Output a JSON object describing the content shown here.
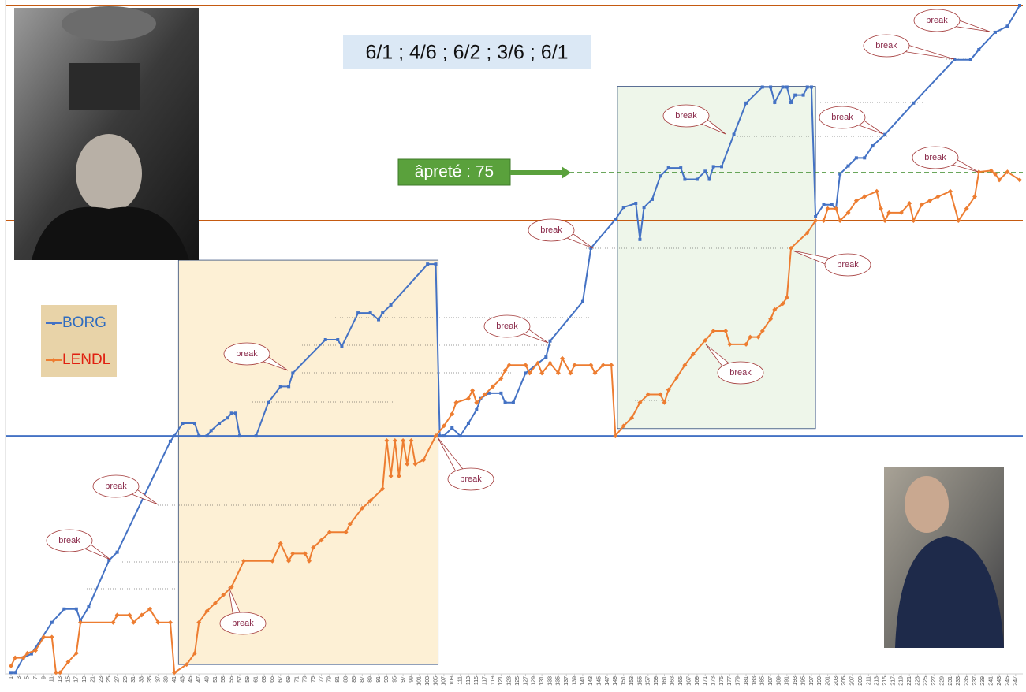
{
  "chart_data": {
    "type": "line",
    "title": "6/1 ; 4/6 ; 6/2 ; 3/6 ; 6/1",
    "xlim": [
      1,
      248
    ],
    "xticks": [
      1,
      3,
      5,
      7,
      9,
      11,
      13,
      15,
      17,
      19,
      21,
      23,
      25,
      27,
      29,
      31,
      33,
      35,
      37,
      39,
      41,
      43,
      45,
      47,
      49,
      51,
      53,
      55,
      57,
      59,
      61,
      63,
      65,
      67,
      69,
      71,
      73,
      75,
      77,
      79,
      81,
      83,
      85,
      87,
      89,
      91,
      93,
      95,
      97,
      99,
      101,
      103,
      105,
      107,
      109,
      111,
      113,
      115,
      117,
      119,
      121,
      123,
      125,
      127,
      129,
      131,
      133,
      135,
      137,
      139,
      141,
      143,
      145,
      147,
      149,
      151,
      153,
      155,
      157,
      159,
      161,
      163,
      165,
      167,
      169,
      171,
      173,
      175,
      177,
      179,
      181,
      183,
      185,
      187,
      189,
      191,
      193,
      195,
      197,
      199,
      201,
      203,
      205,
      207,
      209,
      211,
      213,
      215,
      217,
      219,
      221,
      223,
      225,
      227,
      229,
      231,
      233,
      235,
      237,
      239,
      241,
      243,
      245,
      247
    ],
    "ylim": [
      0,
      100
    ],
    "series": [
      {
        "name": "BORG",
        "color": "#4472c4",
        "marker": "square",
        "x": [
          1,
          2,
          4,
          6,
          11,
          14,
          17,
          18,
          20,
          25,
          27,
          40,
          41,
          43,
          46,
          47,
          49,
          50,
          52,
          54,
          55,
          56,
          57,
          61,
          64,
          67,
          69,
          70,
          78,
          81,
          82,
          86,
          89,
          91,
          92,
          94,
          103,
          105,
          106,
          107,
          109,
          111,
          113,
          115,
          116,
          118,
          121,
          122,
          124,
          127,
          132,
          133,
          141,
          143,
          149,
          151,
          154,
          155,
          156,
          158,
          160,
          162,
          165,
          166,
          169,
          171,
          172,
          173,
          175,
          178,
          181,
          185,
          187,
          188,
          190,
          191,
          192,
          193,
          195,
          196,
          197,
          198,
          200,
          202,
          203,
          204,
          206,
          208,
          210,
          212,
          215,
          222,
          232,
          236,
          238,
          242,
          245,
          248
        ],
        "values": [
          0.2,
          0.2,
          2.4,
          3,
          7.7,
          9.7,
          9.7,
          8,
          10,
          17,
          18.2,
          34.8,
          35.6,
          37.5,
          37.5,
          35.6,
          35.6,
          36.4,
          37.5,
          38.3,
          39,
          39,
          35.6,
          35.6,
          40.6,
          43,
          43,
          45,
          50,
          50,
          49,
          54,
          54,
          53,
          54,
          55.2,
          61.3,
          61.3,
          35.6,
          35.6,
          36.8,
          35.6,
          37.5,
          39.5,
          41.2,
          42,
          42,
          40.6,
          40.6,
          45,
          47.4,
          49.8,
          55.7,
          63.7,
          68,
          69.8,
          70.4,
          65,
          69.8,
          71,
          74.5,
          75.7,
          75.7,
          74,
          74,
          75.2,
          74,
          75.9,
          75.9,
          80.7,
          85.4,
          87.8,
          87.8,
          85.5,
          87.8,
          87.8,
          85.5,
          86.6,
          86.6,
          87.8,
          87.8,
          68.4,
          70.2,
          70.2,
          69.6,
          74.8,
          76,
          77.2,
          77.2,
          79,
          80.7,
          85.4,
          91.9,
          91.9,
          93.4,
          96,
          96.9,
          100
        ]
      },
      {
        "name": "LENDL",
        "color": "#ed7d31",
        "marker": "diamond",
        "x": [
          1,
          2,
          4,
          5,
          7,
          9,
          11,
          12,
          13,
          15,
          17,
          18,
          26,
          27,
          30,
          31,
          33,
          35,
          37,
          40,
          41,
          44,
          46,
          47,
          49,
          51,
          53,
          55,
          58,
          65,
          67,
          69,
          70,
          73,
          74,
          75,
          77,
          79,
          83,
          84,
          87,
          89,
          92,
          93,
          94,
          95,
          96,
          97,
          98,
          99,
          100,
          102,
          105,
          107,
          109,
          110,
          113,
          114,
          115,
          117,
          119,
          121,
          122,
          123,
          127,
          128,
          130,
          131,
          133,
          135,
          136,
          138,
          139,
          143,
          144,
          146,
          148,
          149,
          151,
          153,
          155,
          157,
          160,
          161,
          162,
          164,
          166,
          168,
          171,
          173,
          176,
          177,
          181,
          182,
          184,
          185,
          187,
          188,
          190,
          191,
          192,
          196,
          198,
          200,
          201,
          203,
          204,
          206,
          208,
          210,
          213,
          214,
          215,
          216,
          219,
          221,
          222,
          224,
          226,
          228,
          231,
          233,
          235,
          237,
          238,
          241,
          242,
          243,
          245,
          248
        ],
        "values": [
          1.2,
          2.4,
          2.4,
          3.1,
          3.5,
          5.5,
          5.5,
          0.2,
          0.2,
          1.8,
          3.1,
          7.7,
          7.7,
          8.8,
          8.8,
          7.7,
          8.8,
          9.7,
          7.7,
          7.7,
          0.2,
          1.4,
          3.1,
          7.7,
          9.4,
          10.6,
          11.8,
          13,
          16.9,
          16.9,
          19.5,
          16.9,
          18,
          18,
          16.9,
          18.9,
          20,
          21.2,
          21.2,
          22.4,
          24.8,
          25.9,
          27.7,
          34.9,
          29.6,
          34.9,
          29.6,
          34.9,
          31.4,
          34.9,
          31.4,
          32,
          35.6,
          37.1,
          38.9,
          40.6,
          41.2,
          42.4,
          40.6,
          41.8,
          43,
          44.2,
          45.4,
          46.2,
          46.2,
          45,
          46.5,
          45,
          46.5,
          45,
          47.2,
          45,
          46.2,
          46.2,
          45,
          46.2,
          46.2,
          35.6,
          37.1,
          38.3,
          40.6,
          41.8,
          41.8,
          40.6,
          42.5,
          44.3,
          46.2,
          47.8,
          49.9,
          51.3,
          51.3,
          49.3,
          49.3,
          50.4,
          50.4,
          51.3,
          53.1,
          54.5,
          55.4,
          56.3,
          63.7,
          66,
          67.8,
          67.8,
          69.6,
          69.6,
          67.8,
          69,
          70.8,
          71.4,
          72.2,
          69.6,
          67.8,
          69,
          69,
          70.4,
          67.8,
          70.2,
          70.8,
          71.4,
          72.2,
          67.8,
          69.6,
          71.4,
          75.1,
          75.3,
          74.8,
          73.9,
          75.1,
          73.9
        ]
      }
    ],
    "reference_lines": [
      {
        "value": 35.6,
        "color": "#4472c4"
      },
      {
        "value": 67.8,
        "color": "#c55a11"
      },
      {
        "value": 100,
        "color": "#c55a11"
      }
    ],
    "threshold": {
      "label": "âpreté : 75",
      "value": 75,
      "color": "#3a8a27"
    },
    "regions": [
      {
        "x": [
          42,
          105.6
        ],
        "y": [
          1.4,
          61.9
        ],
        "color": "#fdf0d5"
      },
      {
        "x": [
          149.5,
          198
        ],
        "y": [
          36.7,
          87.9
        ],
        "color": "#eef6ea"
      }
    ],
    "break_labels": [
      "break",
      "break",
      "break",
      "break",
      "break",
      "break",
      "break",
      "break",
      "break",
      "break",
      "break",
      "break",
      "break",
      "break"
    ]
  }
}
